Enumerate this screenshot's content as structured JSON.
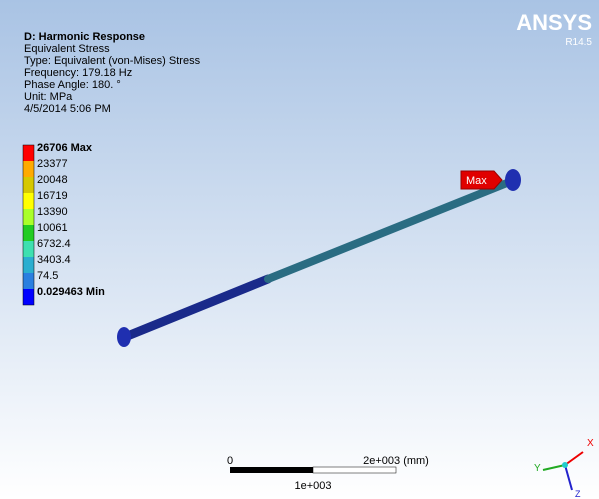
{
  "header": {
    "lines": [
      "D: Harmonic Response",
      "Equivalent Stress",
      "Type: Equivalent (von-Mises) Stress",
      "Frequency: 179.18 Hz",
      "Phase Angle: 180. °",
      "Unit: MPa",
      "4/5/2014 5:06 PM"
    ]
  },
  "logo": {
    "name": "ANSYS",
    "version": "R14.5"
  },
  "legend": {
    "entries": [
      {
        "label": "26706 Max",
        "color": "#ff0000"
      },
      {
        "label": "23377",
        "color": "#ffaa00"
      },
      {
        "label": "20048",
        "color": "#d6c800"
      },
      {
        "label": "16719",
        "color": "#ffff00"
      },
      {
        "label": "13390",
        "color": "#aaff2a"
      },
      {
        "label": "10061",
        "color": "#22cc22"
      },
      {
        "label": "6732.4",
        "color": "#3de0b0"
      },
      {
        "label": "3403.4",
        "color": "#2aaed0"
      },
      {
        "label": "74.5",
        "color": "#2a7fe0"
      },
      {
        "label": "0.029463 Min",
        "color": "#0000ff"
      }
    ]
  },
  "probe": {
    "label": "Max"
  },
  "scale_bar": {
    "start": "0",
    "end": "2e+003 (mm)",
    "middle": "1e+003"
  },
  "triad": {
    "x": "X",
    "y": "Y",
    "z": "Z"
  }
}
